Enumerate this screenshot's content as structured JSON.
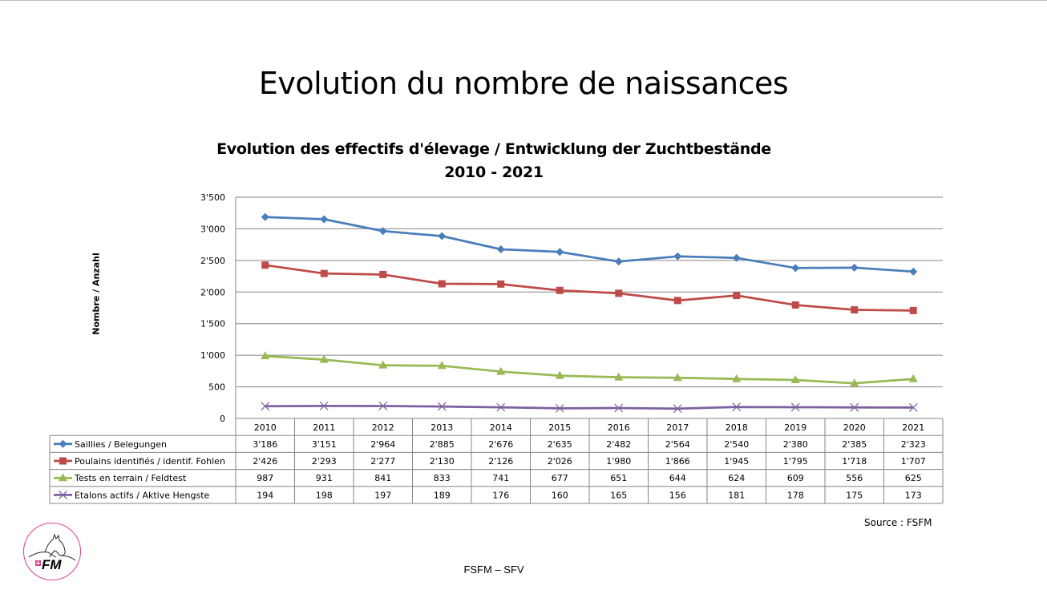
{
  "slide": {
    "title": "Evolution du nombre de naissances",
    "source": "Source : FSFM",
    "footer": "FSFM – SFV",
    "logo_text": "FM"
  },
  "chart_data": {
    "type": "line",
    "title_line1": "Evolution des effectifs d'élevage / Entwicklung der Zuchtbestände",
    "title_line2": "2010 - 2021",
    "ylabel": "Nombre / Anzahl",
    "xlabel": "",
    "ylim": [
      0,
      3500
    ],
    "yticks": [
      0,
      500,
      1000,
      1500,
      2000,
      2500,
      3000,
      3500
    ],
    "ytick_labels": [
      "0",
      "500",
      "1'000",
      "1'500",
      "2'000",
      "2'500",
      "3'000",
      "3'500"
    ],
    "grid": true,
    "legend": "data-table-below",
    "categories": [
      "2010",
      "2011",
      "2012",
      "2013",
      "2014",
      "2015",
      "2016",
      "2017",
      "2018",
      "2019",
      "2020",
      "2021"
    ],
    "series": [
      {
        "name": "Saillies / Belegungen",
        "color": "#4a7ebb",
        "marker": "diamond",
        "values": [
          3186,
          3151,
          2964,
          2885,
          2676,
          2635,
          2482,
          2564,
          2540,
          2380,
          2385,
          2323
        ],
        "labels": [
          "3'186",
          "3'151",
          "2'964",
          "2'885",
          "2'676",
          "2'635",
          "2'482",
          "2'564",
          "2'540",
          "2'380",
          "2'385",
          "2'323"
        ]
      },
      {
        "name": "Poulains identifiés / identif. Fohlen",
        "color": "#be4b48",
        "marker": "square",
        "values": [
          2426,
          2293,
          2277,
          2130,
          2126,
          2026,
          1980,
          1866,
          1945,
          1795,
          1718,
          1707
        ],
        "labels": [
          "2'426",
          "2'293",
          "2'277",
          "2'130",
          "2'126",
          "2'026",
          "1'980",
          "1'866",
          "1'945",
          "1'795",
          "1'718",
          "1'707"
        ]
      },
      {
        "name": "Tests en terrain / Feldtest",
        "color": "#98b954",
        "marker": "triangle",
        "values": [
          987,
          931,
          841,
          833,
          741,
          677,
          651,
          644,
          624,
          609,
          556,
          625
        ],
        "labels": [
          "987",
          "931",
          "841",
          "833",
          "741",
          "677",
          "651",
          "644",
          "624",
          "609",
          "556",
          "625"
        ]
      },
      {
        "name": "Etalons actifs / Aktive Hengste",
        "color": "#7d60a0",
        "marker": "x",
        "values": [
          194,
          198,
          197,
          189,
          176,
          160,
          165,
          156,
          181,
          178,
          175,
          173
        ],
        "labels": [
          "194",
          "198",
          "197",
          "189",
          "176",
          "160",
          "165",
          "156",
          "181",
          "178",
          "175",
          "173"
        ]
      }
    ]
  }
}
